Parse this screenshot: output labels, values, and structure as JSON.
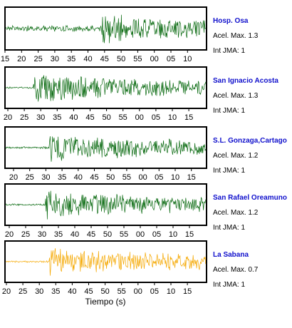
{
  "chart_data": {
    "type": "line",
    "xlabel": "Tiempo (s)",
    "accel_label": "Acel. Max.",
    "jma_label": "Int JMA:",
    "colors": {
      "green": "#0b6b12",
      "orange": "#f5a800",
      "station_name": "#1010cc"
    },
    "panels": [
      {
        "station": "Hosp. Osa",
        "accel_max": "1.3",
        "jma": "1",
        "color": "#0b6b12",
        "ticks": [
          "15",
          "20",
          "25",
          "30",
          "35",
          "40",
          "45",
          "50",
          "55",
          "00",
          "05",
          "10"
        ]
      },
      {
        "station": "San Ignacio Acosta",
        "accel_max": "1.3",
        "jma": "1",
        "color": "#0b6b12",
        "ticks": [
          "20",
          "25",
          "30",
          "35",
          "40",
          "45",
          "50",
          "55",
          "00",
          "05",
          "10",
          "15"
        ]
      },
      {
        "station": "S.L. Gonzaga,Cartago",
        "accel_max": "1.2",
        "jma": "1",
        "color": "#0b6b12",
        "ticks": [
          "20",
          "25",
          "30",
          "35",
          "40",
          "45",
          "50",
          "55",
          "00",
          "05",
          "10",
          "15"
        ]
      },
      {
        "station": "San Rafael Oreamuno",
        "accel_max": "1.2",
        "jma": "1",
        "color": "#0b6b12",
        "ticks": [
          "20",
          "25",
          "30",
          "35",
          "40",
          "45",
          "50",
          "55",
          "00",
          "05",
          "10",
          "15"
        ]
      },
      {
        "station": "La Sabana",
        "accel_max": "0.7",
        "jma": "1",
        "color": "#f5a800",
        "ticks": [
          "20",
          "25",
          "30",
          "35",
          "40",
          "45",
          "50",
          "55",
          "00",
          "05",
          "10",
          "15"
        ]
      }
    ]
  }
}
